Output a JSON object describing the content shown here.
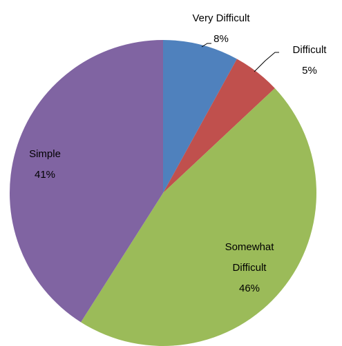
{
  "chart_data": {
    "type": "pie",
    "categories": [
      "Very Difficult",
      "Difficult",
      "Somewhat Difficult",
      "Simple"
    ],
    "values": [
      8,
      5,
      46,
      41
    ],
    "value_labels": [
      "8%",
      "5%",
      "46%",
      "41%"
    ],
    "colors": [
      "#4f81bd",
      "#c0504d",
      "#9bbb59",
      "#8064a2"
    ]
  }
}
